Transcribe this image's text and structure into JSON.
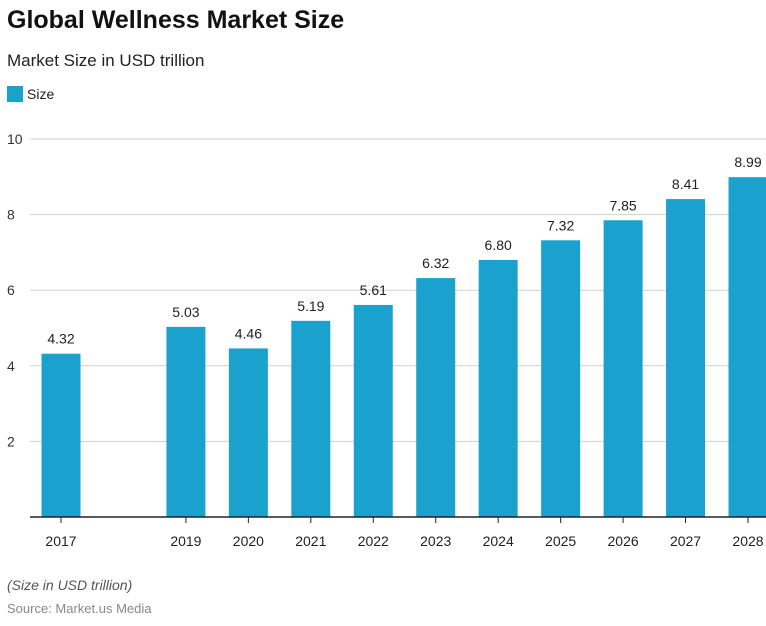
{
  "chart_data": {
    "type": "bar",
    "title": "Global Wellness Market Size",
    "subtitle": "Market Size in USD trillion",
    "legend": {
      "position": "top-left",
      "entries": [
        "Size"
      ]
    },
    "series": [
      {
        "name": "Size",
        "color": "#1aa1cd",
        "x": [
          2017,
          2019,
          2020,
          2021,
          2022,
          2023,
          2024,
          2025,
          2026,
          2027,
          2028
        ],
        "values": [
          4.32,
          5.03,
          4.46,
          5.19,
          5.61,
          6.32,
          6.8,
          7.32,
          7.85,
          8.41,
          8.99
        ],
        "labels": [
          "4.32",
          "5.03",
          "4.46",
          "5.19",
          "5.61",
          "6.32",
          "6.80",
          "7.32",
          "7.85",
          "8.41",
          "8.99"
        ]
      }
    ],
    "x_tick_labels": [
      "2017",
      "2019",
      "2020",
      "2021",
      "2022",
      "2023",
      "2024",
      "2025",
      "2026",
      "2027",
      "2028"
    ],
    "x_range": [
      2017,
      2028
    ],
    "ylim": [
      0,
      10
    ],
    "y_ticks": [
      2,
      4,
      6,
      8,
      10
    ],
    "y_tick_labels": [
      "2",
      "4",
      "6",
      "8",
      "10"
    ],
    "grid": true,
    "xlabel": "",
    "ylabel": ""
  },
  "footer": {
    "note": "(Size in USD trillion)",
    "source": "Source: Market.us Media"
  }
}
